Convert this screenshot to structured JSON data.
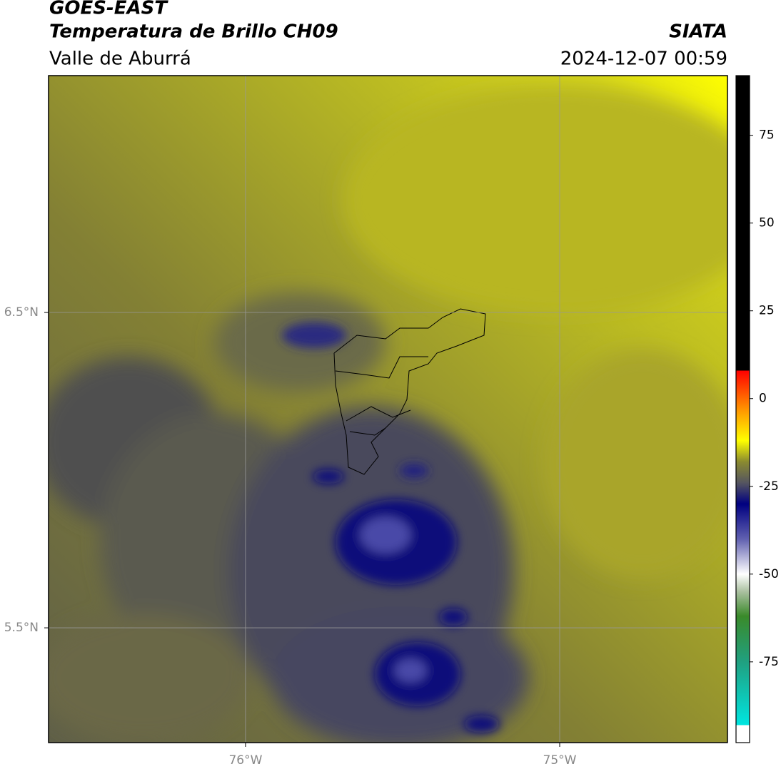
{
  "header": {
    "line1": "GOES-EAST",
    "title": "Temperatura de Brillo CH09",
    "region": "Valle de Aburrá",
    "source": "SIATA",
    "timestamp": "2024-12-07 00:59"
  },
  "map": {
    "lat_range": [
      5.136,
      7.251
    ],
    "lon_range": [
      -76.627,
      -74.466
    ],
    "lat_ticks": [
      {
        "value": 6.5,
        "label": "6.5°N"
      },
      {
        "value": 5.5,
        "label": "5.5°N"
      }
    ],
    "lon_ticks": [
      {
        "value": -76,
        "label": "76°W"
      },
      {
        "value": -75,
        "label": "75°W"
      }
    ]
  },
  "colorbar": {
    "range": [
      -98,
      92
    ],
    "ticks": [
      75,
      50,
      25,
      0,
      -25,
      -50,
      -75
    ],
    "stops": [
      [
        -98,
        "#ffffff"
      ],
      [
        -93,
        "#ffffff"
      ],
      [
        -93,
        "#00e5e0"
      ],
      [
        -75,
        "#20a080"
      ],
      [
        -62,
        "#3a8a2a"
      ],
      [
        -55,
        "#aac0a0"
      ],
      [
        -50,
        "#ffffff"
      ],
      [
        -40,
        "#6060b0"
      ],
      [
        -30,
        "#000080"
      ],
      [
        -24,
        "#555560"
      ],
      [
        -18,
        "#8a8a30"
      ],
      [
        -12,
        "#ffff00"
      ],
      [
        -4,
        "#ffa000"
      ],
      [
        8,
        "#ff0000"
      ],
      [
        8,
        "#000000"
      ],
      [
        92,
        "#000000"
      ]
    ]
  }
}
